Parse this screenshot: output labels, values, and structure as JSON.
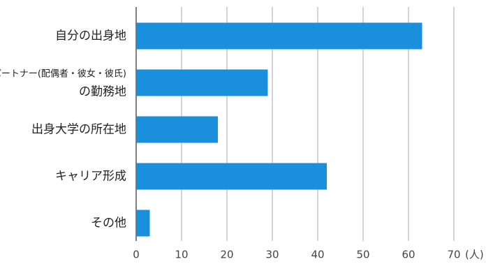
{
  "chart_data": {
    "type": "bar",
    "orientation": "horizontal",
    "categories": [
      "自分の出身地",
      [
        "パートナー(配偶者・彼女・彼氏)",
        "の勤務地"
      ],
      "出身大学の所在地",
      "キャリア形成",
      "その他"
    ],
    "values": [
      63,
      29,
      18,
      42,
      3
    ],
    "color": "#1a8fdb",
    "xlim": [
      0,
      70
    ],
    "xticks": [
      0,
      10,
      20,
      30,
      40,
      50,
      60,
      70
    ],
    "x_unit": "(人)",
    "grid": true
  }
}
